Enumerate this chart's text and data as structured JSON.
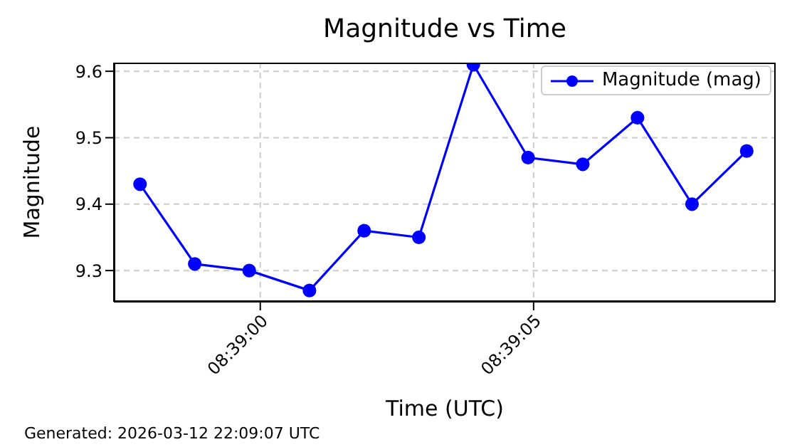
{
  "chart_data": {
    "type": "line",
    "title": "Magnitude vs Time",
    "xlabel": "Time (UTC)",
    "ylabel": "Magnitude",
    "x": [
      8.649389,
      8.649667,
      8.649944,
      8.65025,
      8.650528,
      8.650806,
      8.651083,
      8.651361,
      8.651639,
      8.651917,
      8.652194,
      8.652472
    ],
    "series": [
      {
        "name": "Magnitude (mag)",
        "color": "#0000ff",
        "values": [
          9.43,
          9.31,
          9.3,
          9.27,
          9.36,
          9.35,
          9.61,
          9.47,
          9.46,
          9.53,
          9.4,
          9.48
        ]
      }
    ],
    "xlim": [
      8.649256,
      8.652619
    ],
    "xticks": [
      {
        "value": 8.65,
        "label": "08:39:00"
      },
      {
        "value": 8.651389,
        "label": "08:39:05"
      }
    ],
    "ylim": [
      9.253,
      9.613
    ],
    "yticks": [
      9.3,
      9.4,
      9.5,
      9.6
    ],
    "grid": true,
    "legend": "top right",
    "marker": "circle",
    "line_style": "solid",
    "annotations": [
      "Generated: 2026-03-12 22:09:07 UTC"
    ]
  }
}
